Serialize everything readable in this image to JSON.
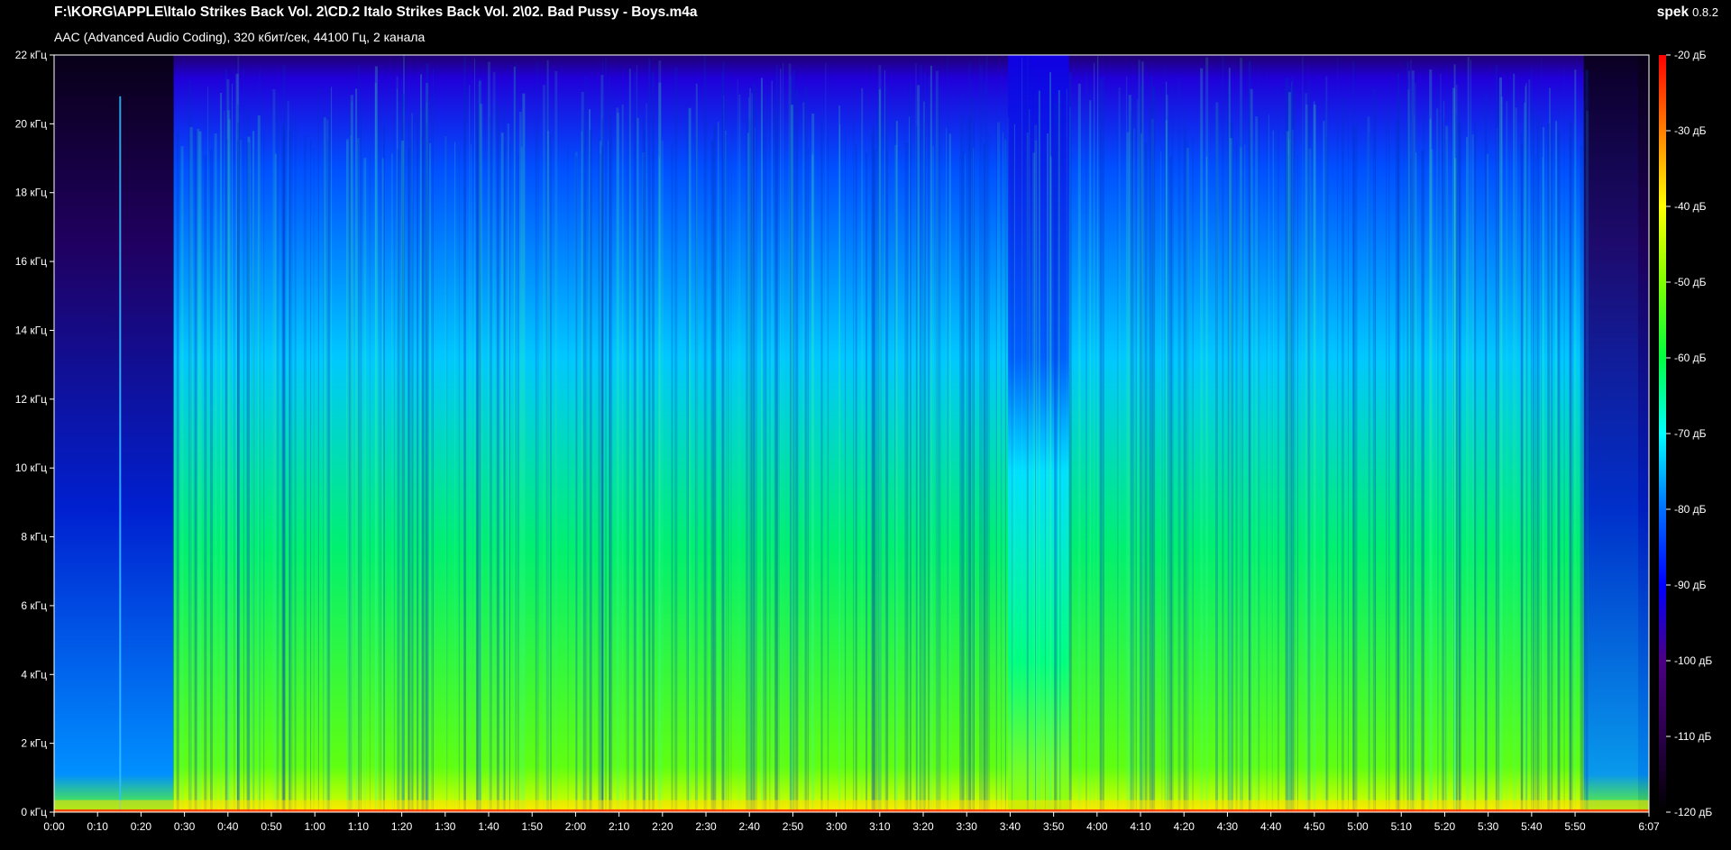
{
  "header": {
    "file_path": "F:\\KORG\\APPLE\\Italo Strikes Back Vol. 2\\CD.2 Italo Strikes Back Vol. 2\\02. Bad Pussy - Boys.m4a",
    "format_info": "AAC (Advanced Audio Coding), 320 кбит/сек, 44100 Гц, 2 канала",
    "app_name": "spek",
    "app_version": "0.8.2"
  },
  "chart_data": {
    "type": "heatmap",
    "title": "",
    "xlabel": "",
    "ylabel": "",
    "x_range_seconds": [
      0,
      367
    ],
    "y_range_khz": [
      0,
      22
    ],
    "db_range": [
      -120,
      -20
    ],
    "x_ticks": [
      "0:00",
      "0:10",
      "0:20",
      "0:30",
      "0:40",
      "0:50",
      "1:00",
      "1:10",
      "1:20",
      "1:30",
      "1:40",
      "1:50",
      "2:00",
      "2:10",
      "2:20",
      "2:30",
      "2:40",
      "2:50",
      "3:00",
      "3:10",
      "3:20",
      "3:30",
      "3:40",
      "3:50",
      "4:00",
      "4:10",
      "4:20",
      "4:30",
      "4:40",
      "4:50",
      "5:00",
      "5:10",
      "5:20",
      "5:30",
      "5:40",
      "5:50",
      "6:07"
    ],
    "x_tick_seconds": [
      0,
      10,
      20,
      30,
      40,
      50,
      60,
      70,
      80,
      90,
      100,
      110,
      120,
      130,
      140,
      150,
      160,
      170,
      180,
      190,
      200,
      210,
      220,
      230,
      240,
      250,
      260,
      270,
      280,
      290,
      300,
      310,
      320,
      330,
      340,
      350,
      367
    ],
    "y_ticks": [
      "0 кГц",
      "2 кГц",
      "4 кГц",
      "6 кГц",
      "8 кГц",
      "10 кГц",
      "12 кГц",
      "14 кГц",
      "16 кГц",
      "18 кГц",
      "20 кГц",
      "22 кГц"
    ],
    "y_tick_khz": [
      0,
      2,
      4,
      6,
      8,
      10,
      12,
      14,
      16,
      18,
      20,
      22
    ],
    "legend_ticks": [
      "-20 дБ",
      "-30 дБ",
      "-40 дБ",
      "-50 дБ",
      "-60 дБ",
      "-70 дБ",
      "-80 дБ",
      "-90 дБ",
      "-100 дБ",
      "-110 дБ",
      "-120 дБ"
    ],
    "legend_tick_db": [
      -20,
      -30,
      -40,
      -50,
      -60,
      -70,
      -80,
      -90,
      -100,
      -110,
      -120
    ],
    "legend_placement": "right",
    "colormap": [
      "#000000",
      "#2a004a",
      "#4b0082",
      "#0000ff",
      "#0070ff",
      "#00ffff",
      "#00ff40",
      "#80ff00",
      "#ffff00",
      "#ff8000",
      "#ff0000"
    ]
  }
}
